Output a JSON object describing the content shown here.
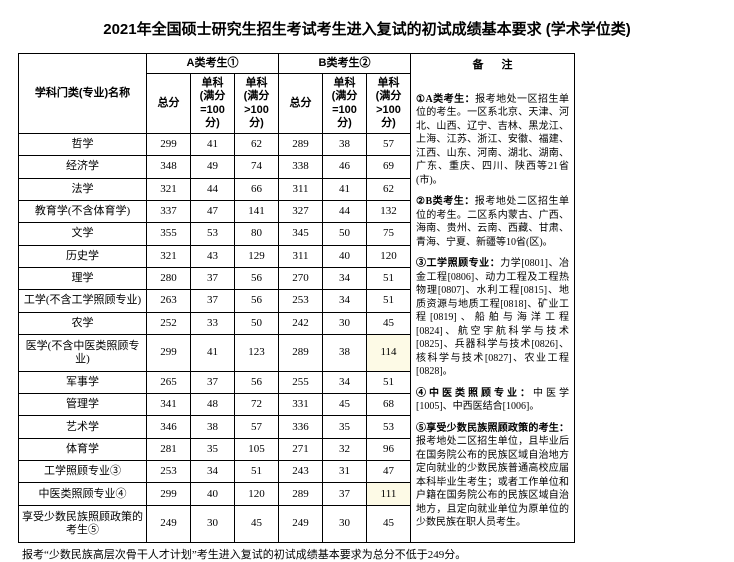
{
  "title": "2021年全国硕士研究生招生考试考生进入复试的初试成绩基本要求 (学术学位类)",
  "headers": {
    "name": "学科门类(专业)名称",
    "groupA": "A类考生①",
    "groupB": "B类考生②",
    "total": "总分",
    "sub1": "单科 (满分=100分)",
    "sub2": "单科 (满分>100分)",
    "notes": "备注"
  },
  "rows": [
    {
      "name": "哲学",
      "a": [
        299,
        41,
        62
      ],
      "b": [
        289,
        38,
        57
      ]
    },
    {
      "name": "经济学",
      "a": [
        348,
        49,
        74
      ],
      "b": [
        338,
        46,
        69
      ]
    },
    {
      "name": "法学",
      "a": [
        321,
        44,
        66
      ],
      "b": [
        311,
        41,
        62
      ]
    },
    {
      "name": "教育学(不含体育学)",
      "a": [
        337,
        47,
        141
      ],
      "b": [
        327,
        44,
        132
      ]
    },
    {
      "name": "文学",
      "a": [
        355,
        53,
        80
      ],
      "b": [
        345,
        50,
        75
      ]
    },
    {
      "name": "历史学",
      "a": [
        321,
        43,
        129
      ],
      "b": [
        311,
        40,
        120
      ]
    },
    {
      "name": "理学",
      "a": [
        280,
        37,
        56
      ],
      "b": [
        270,
        34,
        51
      ]
    },
    {
      "name": "工学(不含工学照顾专业)",
      "a": [
        263,
        37,
        56
      ],
      "b": [
        253,
        34,
        51
      ]
    },
    {
      "name": "农学",
      "a": [
        252,
        33,
        50
      ],
      "b": [
        242,
        30,
        45
      ]
    },
    {
      "name": "医学(不含中医类照顾专业)",
      "a": [
        299,
        41,
        123
      ],
      "b": [
        289,
        38,
        114
      ],
      "hlB3": true
    },
    {
      "name": "军事学",
      "a": [
        265,
        37,
        56
      ],
      "b": [
        255,
        34,
        51
      ]
    },
    {
      "name": "管理学",
      "a": [
        341,
        48,
        72
      ],
      "b": [
        331,
        45,
        68
      ]
    },
    {
      "name": "艺术学",
      "a": [
        346,
        38,
        57
      ],
      "b": [
        336,
        35,
        53
      ]
    },
    {
      "name": "体育学",
      "a": [
        281,
        35,
        105
      ],
      "b": [
        271,
        32,
        96
      ]
    },
    {
      "name": "工学照顾专业③",
      "a": [
        253,
        34,
        51
      ],
      "b": [
        243,
        31,
        47
      ]
    },
    {
      "name": "中医类照顾专业④",
      "a": [
        299,
        40,
        120
      ],
      "b": [
        289,
        37,
        111
      ],
      "hlB3": true
    },
    {
      "name": "享受少数民族照顾政策的考生⑤",
      "a": [
        249,
        30,
        45
      ],
      "b": [
        249,
        30,
        45
      ]
    }
  ],
  "footnote": "报考“少数民族高层次骨干人才计划”考生进入复试的初试成绩基本要求为总分不低于249分。",
  "notes": [
    {
      "head": "①A类考生：",
      "body": "报考地处一区招生单位的考生。一区系北京、天津、河北、山西、辽宁、吉林、黑龙江、上海、江苏、浙江、安徽、福建、江西、山东、河南、湖北、湖南、广东、重庆、四川、陕西等21省(市)。"
    },
    {
      "head": "②B类考生：",
      "body": "报考地处二区招生单位的考生。二区系内蒙古、广西、海南、贵州、云南、西藏、甘肃、青海、宁夏、新疆等10省(区)。"
    },
    {
      "head": "③工学照顾专业：",
      "body": "力学[0801]、冶金工程[0806]、动力工程及工程热物理[0807]、水利工程[0815]、地质资源与地质工程[0818]、矿业工程[0819]、船舶与海洋工程[0824]、航空宇航科学与技术[0825]、兵器科学与技术[0826]、核科学与技术[0827]、农业工程[0828]。"
    },
    {
      "head": "④中医类照顾专业：",
      "body": "中医学[1005]、中西医结合[1006]。"
    },
    {
      "head": "⑤享受少数民族照顾政策的考生：",
      "body": "报考地处二区招生单位，且毕业后在国务院公布的民族区域自治地方定向就业的少数民族普通高校应届本科毕业生考生；或者工作单位和户籍在国务院公布的民族区域自治地方，且定向就业单位为原单位的少数民族在职人员考生。"
    }
  ]
}
